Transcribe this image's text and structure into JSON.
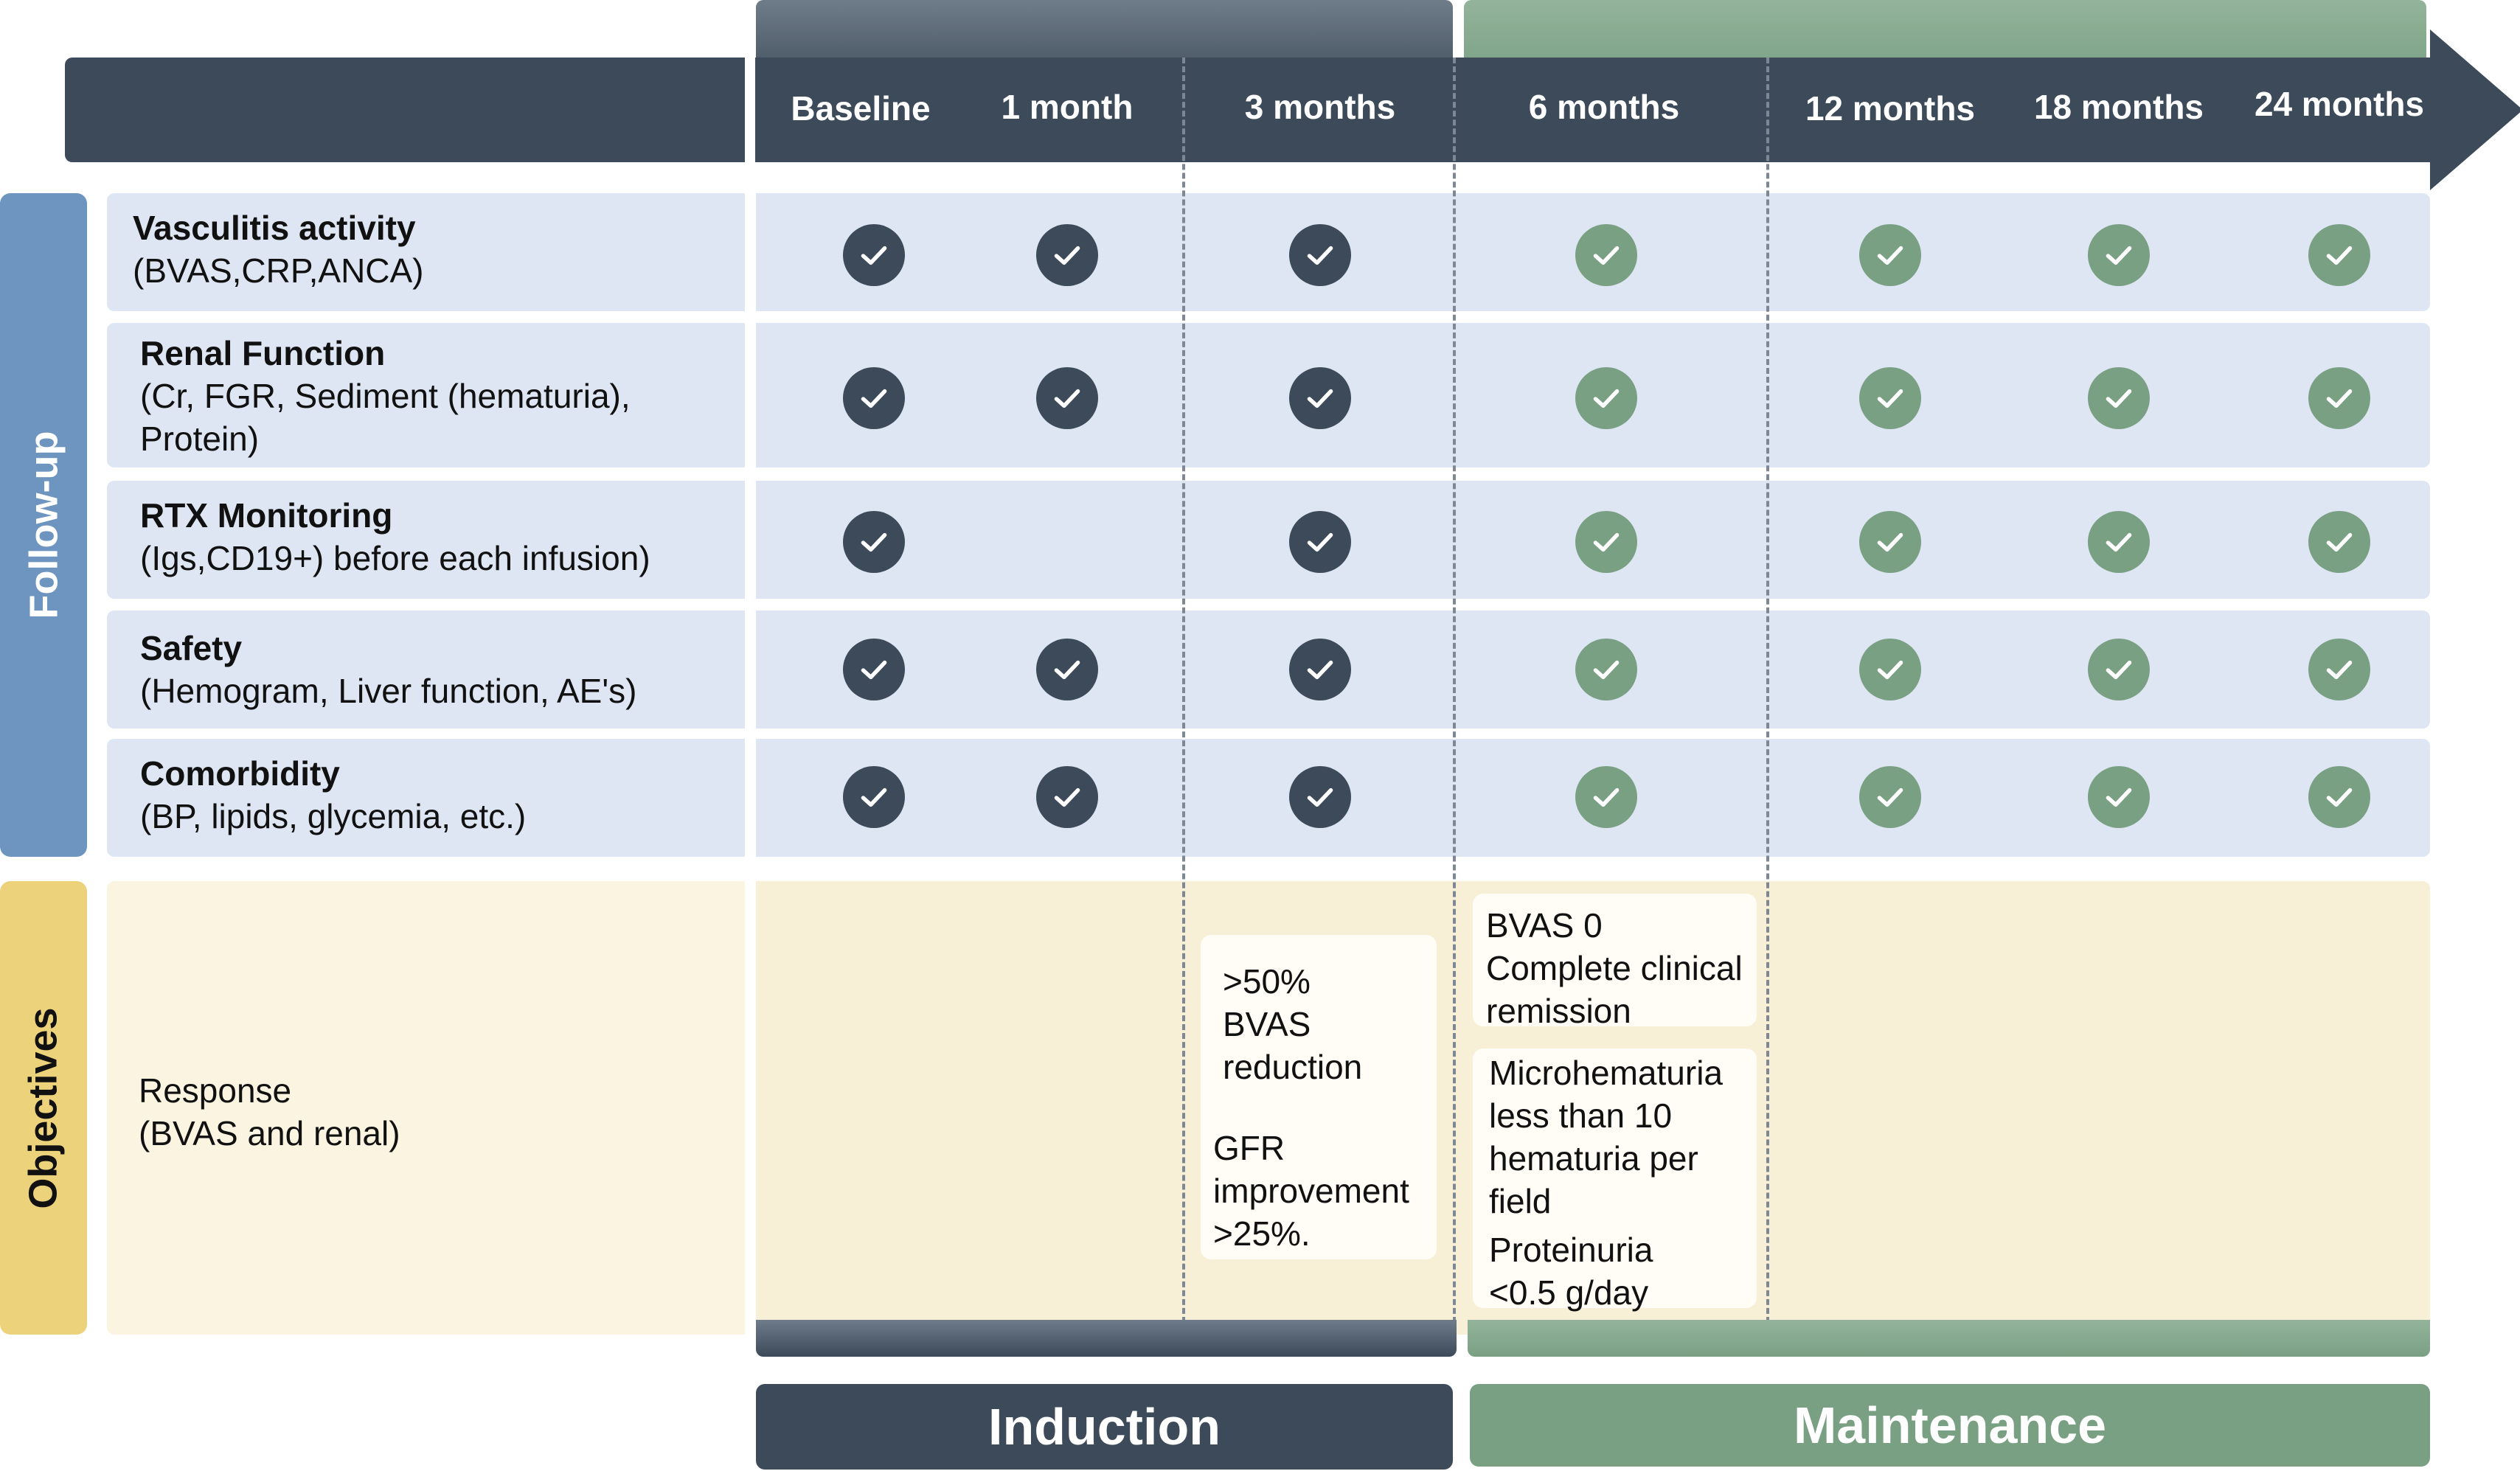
{
  "timepoints": [
    "Baseline",
    "1 month",
    "3 months",
    "6 months",
    "12 months",
    "18 months",
    "24 months"
  ],
  "sections": {
    "follow_up": "Follow-up",
    "objectives": "Objectives"
  },
  "rows": [
    {
      "title": "Vasculitis activity",
      "desc": "(BVAS,CRP,ANCA)",
      "checks": [
        true,
        true,
        true,
        true,
        true,
        true,
        true
      ]
    },
    {
      "title": "Renal Function",
      "desc": "(Cr, FGR, Sediment (hematuria),",
      "desc2": "Protein)",
      "checks": [
        true,
        true,
        true,
        true,
        true,
        true,
        true
      ]
    },
    {
      "title": "RTX Monitoring",
      "desc": "(Igs,CD19+) before each infusion)",
      "checks": [
        true,
        false,
        true,
        true,
        true,
        true,
        true
      ]
    },
    {
      "title": "Safety",
      "desc": "(Hemogram, Liver function, AE's)",
      "checks": [
        true,
        true,
        true,
        true,
        true,
        true,
        true
      ]
    },
    {
      "title": "Comorbidity",
      "desc": "(BP, lipids, glycemia, etc.)",
      "checks": [
        true,
        true,
        true,
        true,
        true,
        true,
        true
      ]
    }
  ],
  "objectives": {
    "label_line1": "Response",
    "label_line2": "(BVAS and renal)",
    "induction_note": {
      "l1": ">50%",
      "l2": "BVAS",
      "l3": "reduction",
      "l4": "GFR",
      "l5": "improvement",
      "l6": ">25%."
    },
    "remission_note": {
      "l1": "BVAS 0",
      "l2": "Complete clinical",
      "l3": "remission"
    },
    "maintenance_note": {
      "l1": "Microhematuria",
      "l2": "less than 10",
      "l3": "hematuria per",
      "l4": "field",
      "l5": "Proteinuria",
      "l6": "<0.5 g/day"
    }
  },
  "phases": {
    "induction": "Induction",
    "maintenance": "Maintenance"
  },
  "colors": {
    "induction": "#3d4a59",
    "maintenance": "#7aa084",
    "follow_up_tab": "#6e95c0",
    "objectives_tab": "#ecd27a"
  }
}
